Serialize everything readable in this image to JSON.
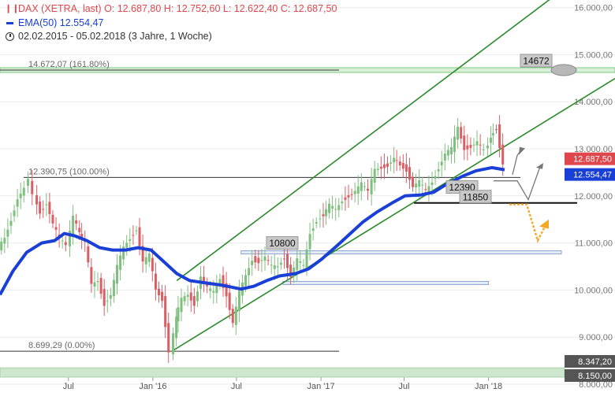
{
  "legend": {
    "symbol_icon": "candlestick-icon",
    "instrument": "DAX (XETRA, last)",
    "ohlc": "O: 12.687,80  H: 12.752,60  L: 12.622,40  C: 12.687,50",
    "ema": "EMA(50) 12.554,47",
    "range": "02.02.2015 - 05.02.2018  (3 Jahre, 1 Woche)"
  },
  "colors": {
    "up": "#7fbf7f",
    "down": "#d95f66",
    "ema": "#1a3fd6",
    "channel": "#2a8a2a",
    "fib": "#333333",
    "fib_extension": "#7ec97e",
    "support_box": "#8aa4cf",
    "arrow_gray": "#777777",
    "arrow_orange": "#f5a623",
    "label_gray": "#c8c8c8",
    "close_tag": "#1a3fd6",
    "last_tag": "#e0474c"
  },
  "chart_data": {
    "type": "candlestick",
    "title": "DAX (XETRA, last)",
    "period": "02.02.2015 - 05.02.2018",
    "ylim": [
      8000,
      16000
    ],
    "y_ticks": [
      "8.000,00",
      "9.000,00",
      "10.000,00",
      "11.000,00",
      "12.000,00",
      "13.000,00",
      "14.000,00",
      "15.000,00",
      "16.000,00"
    ],
    "x_ticks": [
      {
        "label": "Jul",
        "date": "2015-07-01"
      },
      {
        "label": "Jan '16",
        "date": "2016-01-01"
      },
      {
        "label": "Jul",
        "date": "2016-07-01"
      },
      {
        "label": "Jan '17",
        "date": "2017-01-01"
      },
      {
        "label": "Jul",
        "date": "2017-07-01"
      },
      {
        "label": "Jan '18",
        "date": "2018-01-01"
      }
    ],
    "x_start": "2015-02-02",
    "x_end": "2018-02-05",
    "last": {
      "open": 12687.8,
      "high": 12752.6,
      "low": 12622.4,
      "close": 12687.5
    },
    "close_path": [
      [
        "2015-02-02",
        10900
      ],
      [
        "2015-02-16",
        11100
      ],
      [
        "2015-03-02",
        11500
      ],
      [
        "2015-03-16",
        11950
      ],
      [
        "2015-04-01",
        12150
      ],
      [
        "2015-04-10",
        12390
      ],
      [
        "2015-04-20",
        12000
      ],
      [
        "2015-05-04",
        11650
      ],
      [
        "2015-05-18",
        11850
      ],
      [
        "2015-06-01",
        11400
      ],
      [
        "2015-06-15",
        11100
      ],
      [
        "2015-07-01",
        10950
      ],
      [
        "2015-07-15",
        11550
      ],
      [
        "2015-07-27",
        11200
      ],
      [
        "2015-08-10",
        11000
      ],
      [
        "2015-08-24",
        10100
      ],
      [
        "2015-09-07",
        10200
      ],
      [
        "2015-09-21",
        9700
      ],
      [
        "2015-10-05",
        9900
      ],
      [
        "2015-10-19",
        10500
      ],
      [
        "2015-11-02",
        10900
      ],
      [
        "2015-11-16",
        11100
      ],
      [
        "2015-11-30",
        11300
      ],
      [
        "2015-12-14",
        10600
      ],
      [
        "2015-12-28",
        10740
      ],
      [
        "2016-01-11",
        10000
      ],
      [
        "2016-01-25",
        9800
      ],
      [
        "2016-02-11",
        8699
      ],
      [
        "2016-02-22",
        9400
      ],
      [
        "2016-03-07",
        9800
      ],
      [
        "2016-03-21",
        9900
      ],
      [
        "2016-04-04",
        9700
      ],
      [
        "2016-04-18",
        10300
      ],
      [
        "2016-05-02",
        10050
      ],
      [
        "2016-05-16",
        9950
      ],
      [
        "2016-05-30",
        10250
      ],
      [
        "2016-06-13",
        9900
      ],
      [
        "2016-06-27",
        9300
      ],
      [
        "2016-07-11",
        9950
      ],
      [
        "2016-07-25",
        10300
      ],
      [
        "2016-08-08",
        10650
      ],
      [
        "2016-08-22",
        10600
      ],
      [
        "2016-09-05",
        10700
      ],
      [
        "2016-09-19",
        10500
      ],
      [
        "2016-10-03",
        10500
      ],
      [
        "2016-10-17",
        10700
      ],
      [
        "2016-10-31",
        10300
      ],
      [
        "2016-11-14",
        10650
      ],
      [
        "2016-11-28",
        10500
      ],
      [
        "2016-12-12",
        11200
      ],
      [
        "2016-12-27",
        11480
      ],
      [
        "2017-01-09",
        11600
      ],
      [
        "2017-01-23",
        11800
      ],
      [
        "2017-02-06",
        11700
      ],
      [
        "2017-02-20",
        11900
      ],
      [
        "2017-03-06",
        12000
      ],
      [
        "2017-03-20",
        12100
      ],
      [
        "2017-04-03",
        12250
      ],
      [
        "2017-04-18",
        12100
      ],
      [
        "2017-05-02",
        12550
      ],
      [
        "2017-05-16",
        12600
      ],
      [
        "2017-05-30",
        12650
      ],
      [
        "2017-06-12",
        12800
      ],
      [
        "2017-06-26",
        12650
      ],
      [
        "2017-07-10",
        12550
      ],
      [
        "2017-07-24",
        12200
      ],
      [
        "2017-08-07",
        12300
      ],
      [
        "2017-08-21",
        12100
      ],
      [
        "2017-09-04",
        12300
      ],
      [
        "2017-09-18",
        12600
      ],
      [
        "2017-10-02",
        12900
      ],
      [
        "2017-10-16",
        13000
      ],
      [
        "2017-10-30",
        13450
      ],
      [
        "2017-11-13",
        13000
      ],
      [
        "2017-11-27",
        13050
      ],
      [
        "2017-12-11",
        13150
      ],
      [
        "2017-12-27",
        12950
      ],
      [
        "2018-01-08",
        13250
      ],
      [
        "2018-01-22",
        13450
      ],
      [
        "2018-01-29",
        13050
      ],
      [
        "2018-02-05",
        12687.5
      ]
    ],
    "ema_path": [
      [
        "2015-02-02",
        9900
      ],
      [
        "2015-03-02",
        10400
      ],
      [
        "2015-04-01",
        10800
      ],
      [
        "2015-05-04",
        11000
      ],
      [
        "2015-06-01",
        11050
      ],
      [
        "2015-06-22",
        11200
      ],
      [
        "2015-07-15",
        11150
      ],
      [
        "2015-08-10",
        11050
      ],
      [
        "2015-09-07",
        10900
      ],
      [
        "2015-10-05",
        10850
      ],
      [
        "2015-11-02",
        10850
      ],
      [
        "2015-11-30",
        10900
      ],
      [
        "2015-12-28",
        10850
      ],
      [
        "2016-01-25",
        10600
      ],
      [
        "2016-02-22",
        10350
      ],
      [
        "2016-03-21",
        10200
      ],
      [
        "2016-04-25",
        10150
      ],
      [
        "2016-06-01",
        10100
      ],
      [
        "2016-07-11",
        10020
      ],
      [
        "2016-08-08",
        10080
      ],
      [
        "2016-09-05",
        10200
      ],
      [
        "2016-10-03",
        10300
      ],
      [
        "2016-11-07",
        10350
      ],
      [
        "2016-12-05",
        10450
      ],
      [
        "2017-01-02",
        10650
      ],
      [
        "2017-02-06",
        10950
      ],
      [
        "2017-03-06",
        11200
      ],
      [
        "2017-04-03",
        11450
      ],
      [
        "2017-05-02",
        11650
      ],
      [
        "2017-06-05",
        11850
      ],
      [
        "2017-07-03",
        12000
      ],
      [
        "2017-08-07",
        12020
      ],
      [
        "2017-09-04",
        12080
      ],
      [
        "2017-10-02",
        12250
      ],
      [
        "2017-11-06",
        12420
      ],
      [
        "2017-12-04",
        12530
      ],
      [
        "2018-01-08",
        12600
      ],
      [
        "2018-02-05",
        12554.47
      ]
    ],
    "series": [
      {
        "name": "DAX (XETRA, last)",
        "kind": "candles",
        "source": "close_path"
      },
      {
        "name": "EMA(50)",
        "kind": "line",
        "last": 12554.47,
        "source": "ema_path"
      }
    ],
    "fib_levels": [
      {
        "label": "14.672,07 (161.80%)",
        "value": 14672.07
      },
      {
        "label": "12.390,75 (100.00%)",
        "value": 12390.75
      },
      {
        "label": "8.699,29 (0.00%)",
        "value": 8699.29
      }
    ],
    "band_bottom": {
      "from": 8150.0,
      "to": 8347.2
    },
    "channel_lines": [
      {
        "from": [
          "2016-02-22",
          10200
        ],
        "to": [
          "2018-02-05",
          15450
        ]
      },
      {
        "from": [
          "2016-02-11",
          8699
        ],
        "to": [
          "2018-02-05",
          13050
        ]
      }
    ],
    "horizontal_lines": [
      {
        "label": "11850",
        "value": 11850,
        "from": "2017-07-15",
        "to": "2018-02-05"
      },
      {
        "value": 10800,
        "from": "2016-07-11",
        "to": "2018-02-05"
      },
      {
        "value": 10150,
        "from": "2016-10-10",
        "to": "2018-01-01"
      }
    ],
    "annotations": [
      {
        "text": "14672",
        "value": 14672,
        "date": "2017-12-27"
      },
      {
        "text": "12390",
        "value": 12390,
        "date": "2017-11-06"
      },
      {
        "text": "10800",
        "value": 10800,
        "date": "2016-10-10"
      },
      {
        "text": "11850",
        "value": 11850,
        "date": "2017-12-11"
      }
    ],
    "price_tags": [
      {
        "text": "12.687,50",
        "value": 12687.5,
        "role": "last"
      },
      {
        "text": "12.554,47",
        "value": 12554.47,
        "role": "ema"
      },
      {
        "text": "8.347,20",
        "value": 8347.2,
        "role": "band"
      },
      {
        "text": "8.150,00",
        "value": 8150.0,
        "role": "band"
      }
    ]
  }
}
